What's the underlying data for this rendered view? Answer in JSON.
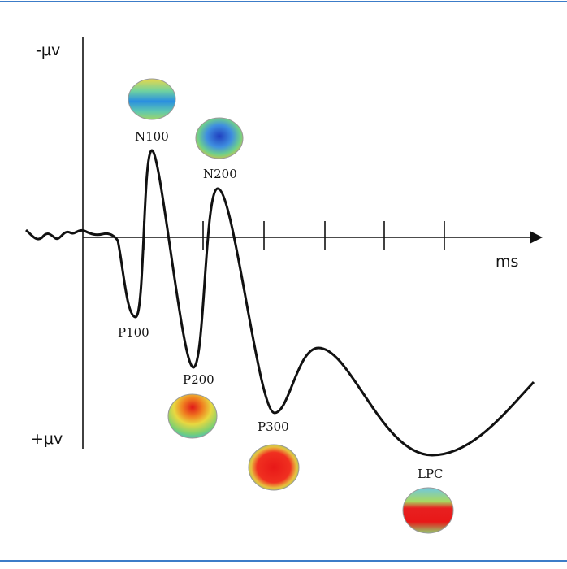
{
  "axis": {
    "y_top": "-μv",
    "y_bottom": "+μv",
    "x": "ms"
  },
  "components": [
    {
      "label": "N100"
    },
    {
      "label": "N200"
    },
    {
      "label": "P100"
    },
    {
      "label": "P200"
    },
    {
      "label": "P300"
    },
    {
      "label": "LPC"
    }
  ]
}
